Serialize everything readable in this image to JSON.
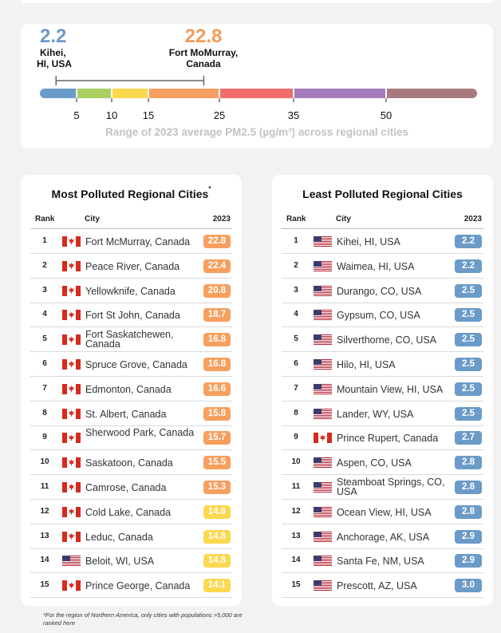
{
  "range": {
    "min_value": "2.2",
    "min_city": "Kihei, HI, USA",
    "min_color": "#6b9bc8",
    "max_value": "22.8",
    "max_city": "Fort MoMurray, Canada",
    "max_color": "#f79b57",
    "caption": "Range of 2023 average PM2.5 (µg/m³) across regional cities"
  },
  "chart_data": {
    "type": "bar",
    "scale": {
      "breakpoints": [
        "5",
        "10",
        "15",
        "25",
        "35",
        "50"
      ],
      "segments": [
        {
          "from": 0,
          "to": 5,
          "color": "#6b9bc8"
        },
        {
          "from": 5,
          "to": 10,
          "color": "#a8d162"
        },
        {
          "from": 10,
          "to": 15,
          "color": "#fbd84e"
        },
        {
          "from": 15,
          "to": 25,
          "color": "#f79f5e"
        },
        {
          "from": 25,
          "to": 35,
          "color": "#f06d6d"
        },
        {
          "from": 35,
          "to": 50,
          "color": "#a57cbb"
        },
        {
          "from": 50,
          "to": 65,
          "color": "#a67a7e"
        }
      ],
      "range_min": 2.2,
      "range_max": 22.8
    }
  },
  "most_polluted": {
    "title": "Most Polluted Regional Cities",
    "title_mark": "*",
    "headers": {
      "rank": "Rank",
      "city": "City",
      "year": "2023"
    },
    "rows": [
      {
        "rank": "1",
        "flag": "canada-flag",
        "city": "Fort McMurray, Canada",
        "value": "22.8",
        "color": "#f79f5e"
      },
      {
        "rank": "2",
        "flag": "canada-flag",
        "city": "Peace River, Canada",
        "value": "22.4",
        "color": "#f79f5e"
      },
      {
        "rank": "3",
        "flag": "canada-flag",
        "city": "Yellowknife, Canada",
        "value": "20.8",
        "color": "#f79f5e"
      },
      {
        "rank": "4",
        "flag": "canada-flag",
        "city": "Fort St John, Canada",
        "value": "18.7",
        "color": "#f79f5e"
      },
      {
        "rank": "5",
        "flag": "canada-flag",
        "city": "Fort Saskatchewen, Canada",
        "value": "16.8",
        "color": "#f79f5e",
        "two_line": true
      },
      {
        "rank": "6",
        "flag": "canada-flag",
        "city": "Spruce Grove, Canada",
        "value": "16.8",
        "color": "#f79f5e"
      },
      {
        "rank": "7",
        "flag": "canada-flag",
        "city": "Edmonton, Canada",
        "value": "16.6",
        "color": "#f79f5e"
      },
      {
        "rank": "8",
        "flag": "canada-flag",
        "city": "St. Albert, Canada",
        "value": "15.8",
        "color": "#f79f5e"
      },
      {
        "rank": "9",
        "flag": "canada-flag",
        "city": "Sherwood Park, Canada",
        "value": "15.7",
        "color": "#f79f5e",
        "two_line": true
      },
      {
        "rank": "10",
        "flag": "canada-flag",
        "city": "Saskatoon, Canada",
        "value": "15.5",
        "color": "#f79f5e"
      },
      {
        "rank": "11",
        "flag": "canada-flag",
        "city": "Camrose, Canada",
        "value": "15.3",
        "color": "#f79f5e"
      },
      {
        "rank": "12",
        "flag": "canada-flag",
        "city": "Cold Lake, Canada",
        "value": "14.8",
        "color": "#fbd84e"
      },
      {
        "rank": "13",
        "flag": "canada-flag",
        "city": "Leduc, Canada",
        "value": "14.8",
        "color": "#fbd84e"
      },
      {
        "rank": "14",
        "flag": "usa-flag",
        "city": "Beloit, WI, USA",
        "value": "14.8",
        "color": "#fbd84e"
      },
      {
        "rank": "15",
        "flag": "canada-flag",
        "city": "Prince George, Canada",
        "value": "14.1",
        "color": "#fbd84e"
      }
    ]
  },
  "least_polluted": {
    "title": "Least Polluted Regional Cities",
    "headers": {
      "rank": "Rank",
      "city": "City",
      "year": "2023"
    },
    "rows": [
      {
        "rank": "1",
        "flag": "usa-flag",
        "city": "Kihei, HI, USA",
        "value": "2.2",
        "color": "#6b9bc8"
      },
      {
        "rank": "2",
        "flag": "usa-flag",
        "city": "Waimea, HI, USA",
        "value": "2.2",
        "color": "#6b9bc8"
      },
      {
        "rank": "3",
        "flag": "usa-flag",
        "city": "Durango, CO, USA",
        "value": "2.5",
        "color": "#6b9bc8"
      },
      {
        "rank": "4",
        "flag": "usa-flag",
        "city": "Gypsum, CO, USA",
        "value": "2.5",
        "color": "#6b9bc8"
      },
      {
        "rank": "5",
        "flag": "usa-flag",
        "city": "Silverthorne, CO, USA",
        "value": "2.5",
        "color": "#6b9bc8"
      },
      {
        "rank": "6",
        "flag": "usa-flag",
        "city": "Hilo, HI, USA",
        "value": "2.5",
        "color": "#6b9bc8"
      },
      {
        "rank": "7",
        "flag": "usa-flag",
        "city": "Mountain View, HI, USA",
        "value": "2.5",
        "color": "#6b9bc8"
      },
      {
        "rank": "8",
        "flag": "usa-flag",
        "city": "Lander, WY, USA",
        "value": "2.5",
        "color": "#6b9bc8"
      },
      {
        "rank": "9",
        "flag": "canada-flag",
        "city": "Prince Rupert, Canada",
        "value": "2.7",
        "color": "#6b9bc8"
      },
      {
        "rank": "10",
        "flag": "usa-flag",
        "city": "Aspen, CO, USA",
        "value": "2.8",
        "color": "#6b9bc8"
      },
      {
        "rank": "11",
        "flag": "usa-flag",
        "city": "Steamboat Springs, CO, USA",
        "value": "2.8",
        "color": "#6b9bc8",
        "two_line": true
      },
      {
        "rank": "12",
        "flag": "usa-flag",
        "city": "Ocean View, HI, USA",
        "value": "2.8",
        "color": "#6b9bc8"
      },
      {
        "rank": "13",
        "flag": "usa-flag",
        "city": "Anchorage, AK, USA",
        "value": "2.9",
        "color": "#6b9bc8"
      },
      {
        "rank": "14",
        "flag": "usa-flag",
        "city": "Santa Fe, NM, USA",
        "value": "2.9",
        "color": "#6b9bc8"
      },
      {
        "rank": "15",
        "flag": "usa-flag",
        "city": "Prescott, AZ, USA",
        "value": "3.0",
        "color": "#6b9bc8"
      }
    ]
  },
  "footnote": "*For the region of Northern America, only cities with populations >5,000 are ranked here"
}
